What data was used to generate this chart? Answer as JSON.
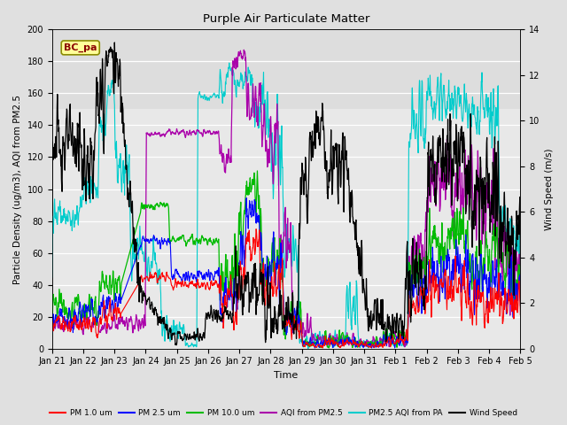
{
  "title": "Purple Air Particulate Matter",
  "xlabel": "Time",
  "ylabel_left": "Particle Density (ug/m3), AQI from PM2.5",
  "ylabel_right": "Wind Speed (m/s)",
  "ylim_left": [
    0,
    200
  ],
  "ylim_right": [
    0,
    14
  ],
  "annotation_text": "BC_pa",
  "annotation_color": "#8B0000",
  "annotation_bg": "#FFFF99",
  "annotation_border": "#8B8B00",
  "xtick_labels": [
    "Jan 21",
    "Jan 22",
    "Jan 23",
    "Jan 24",
    "Jan 25",
    "Jan 26",
    "Jan 27",
    "Jan 28",
    "Jan 29",
    "Jan 30",
    "Jan 31",
    "Feb 1",
    "Feb 2",
    "Feb 3",
    "Feb 4",
    "Feb 5"
  ],
  "fig_bg": "#E0E0E0",
  "axes_bg": "#E8E8E8",
  "upper_bg": "#D0D0D0",
  "colors": {
    "pm1": "#FF0000",
    "pm25": "#0000FF",
    "pm10": "#00BB00",
    "aqi_pm25": "#AA00AA",
    "pm25_pa": "#00CCCC",
    "wind": "#000000"
  },
  "legend_entries": [
    "PM 1.0 um",
    "PM 2.5 um",
    "PM 10.0 um",
    "AQI from PM2.5",
    "PM2.5 AQI from PA",
    "Wind Speed"
  ],
  "grid_color": "#FFFFFF",
  "yticks_left": [
    0,
    20,
    40,
    60,
    80,
    100,
    120,
    140,
    160,
    180,
    200
  ],
  "yticks_right": [
    0,
    2,
    4,
    6,
    8,
    10,
    12,
    14
  ]
}
